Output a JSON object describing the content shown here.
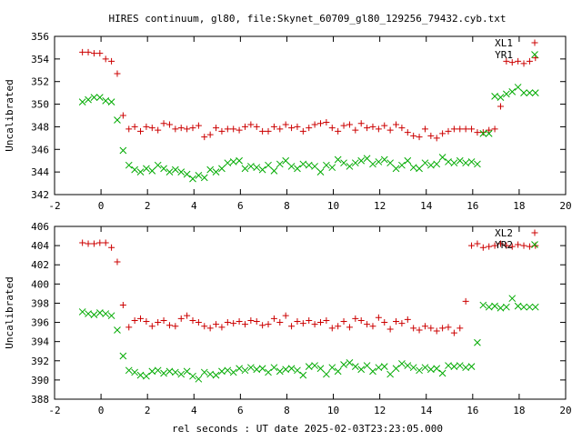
{
  "title": "HIRES continuum, gl80, file:Skynet_60709_gl80_129256_79432.cyb.txt",
  "xlabel": "rel seconds : UT date 2025-02-03T23:23:05.000",
  "colors": {
    "red": "#cc0000",
    "green": "#00aa00",
    "axis": "#000000"
  },
  "chart_data": [
    {
      "type": "scatter",
      "title": "",
      "xlabel": "",
      "ylabel": "Uncalibrated",
      "xlim": [
        -2,
        20
      ],
      "ylim": [
        342,
        356
      ],
      "xticks": [
        "-2",
        "0",
        "2",
        "4",
        "6",
        "8",
        "10",
        "12",
        "14",
        "16",
        "18",
        "20"
      ],
      "yticks": [
        "342",
        "344",
        "346",
        "348",
        "350",
        "352",
        "354",
        "356"
      ],
      "legend": "top-right",
      "series": [
        {
          "name": "XL1",
          "marker": "plus",
          "color": "#cc0000",
          "x": [
            -0.8,
            -0.55,
            -0.3,
            -0.05,
            0.2,
            0.45,
            0.7,
            0.95,
            1.2,
            1.45,
            1.7,
            1.95,
            2.2,
            2.45,
            2.7,
            2.95,
            3.2,
            3.45,
            3.7,
            3.95,
            4.2,
            4.45,
            4.7,
            4.95,
            5.2,
            5.45,
            5.7,
            5.95,
            6.2,
            6.45,
            6.7,
            6.95,
            7.2,
            7.45,
            7.7,
            7.95,
            8.2,
            8.45,
            8.7,
            8.95,
            9.2,
            9.45,
            9.7,
            9.95,
            10.2,
            10.45,
            10.7,
            10.95,
            11.2,
            11.45,
            11.7,
            11.95,
            12.2,
            12.45,
            12.7,
            12.95,
            13.2,
            13.45,
            13.7,
            13.95,
            14.2,
            14.45,
            14.7,
            14.95,
            15.2,
            15.45,
            15.7,
            15.95,
            16.2,
            16.45,
            16.7,
            16.95,
            17.2,
            17.45,
            17.7,
            17.95,
            18.2,
            18.45,
            18.7
          ],
          "y": [
            354.6,
            354.6,
            354.5,
            354.5,
            354.0,
            353.8,
            352.7,
            349.0,
            347.8,
            348.0,
            347.6,
            348.0,
            347.9,
            347.7,
            348.3,
            348.2,
            347.8,
            347.9,
            347.8,
            347.9,
            348.1,
            347.1,
            347.3,
            347.9,
            347.6,
            347.8,
            347.8,
            347.7,
            348.0,
            348.2,
            348.0,
            347.6,
            347.6,
            348.0,
            347.8,
            348.2,
            347.9,
            348.0,
            347.6,
            347.9,
            348.2,
            348.3,
            348.4,
            347.9,
            347.6,
            348.1,
            348.2,
            347.7,
            348.3,
            347.9,
            348.0,
            347.8,
            348.1,
            347.7,
            348.2,
            347.9,
            347.5,
            347.2,
            347.1,
            347.8,
            347.2,
            347.0,
            347.4,
            347.6,
            347.8,
            347.8,
            347.8,
            347.8,
            347.5,
            347.5,
            347.7,
            347.8,
            349.8,
            353.8,
            353.7,
            353.8,
            353.6,
            353.8,
            354.1
          ]
        },
        {
          "name": "YR1",
          "marker": "cross",
          "color": "#00aa00",
          "x": [
            -0.8,
            -0.55,
            -0.3,
            -0.05,
            0.2,
            0.45,
            0.7,
            0.95,
            1.2,
            1.45,
            1.7,
            1.95,
            2.2,
            2.45,
            2.7,
            2.95,
            3.2,
            3.45,
            3.7,
            3.95,
            4.2,
            4.45,
            4.7,
            4.95,
            5.2,
            5.45,
            5.7,
            5.95,
            6.2,
            6.45,
            6.7,
            6.95,
            7.2,
            7.45,
            7.7,
            7.95,
            8.2,
            8.45,
            8.7,
            8.95,
            9.2,
            9.45,
            9.7,
            9.95,
            10.2,
            10.45,
            10.7,
            10.95,
            11.2,
            11.45,
            11.7,
            11.95,
            12.2,
            12.45,
            12.7,
            12.95,
            13.2,
            13.45,
            13.7,
            13.95,
            14.2,
            14.45,
            14.7,
            14.95,
            15.2,
            15.45,
            15.7,
            15.95,
            16.2,
            16.45,
            16.7,
            16.95,
            17.2,
            17.45,
            17.7,
            17.95,
            18.2,
            18.45,
            18.7
          ],
          "y": [
            350.2,
            350.4,
            350.6,
            350.6,
            350.3,
            350.2,
            348.6,
            345.9,
            344.6,
            344.2,
            344.0,
            344.3,
            344.1,
            344.6,
            344.3,
            344.0,
            344.2,
            344.0,
            343.8,
            343.4,
            343.7,
            343.5,
            344.2,
            344.0,
            344.3,
            344.8,
            344.9,
            345.0,
            344.3,
            344.5,
            344.4,
            344.2,
            344.6,
            344.1,
            344.7,
            345.0,
            344.5,
            344.3,
            344.7,
            344.6,
            344.5,
            344.0,
            344.6,
            344.4,
            345.1,
            344.8,
            344.5,
            344.8,
            345.0,
            345.2,
            344.7,
            344.9,
            345.1,
            344.8,
            344.3,
            344.6,
            345.0,
            344.4,
            344.3,
            344.8,
            344.6,
            344.7,
            345.3,
            344.9,
            344.8,
            345.0,
            344.8,
            344.9,
            344.7,
            347.4,
            347.4,
            350.7,
            350.6,
            350.9,
            351.1,
            351.5,
            351.0,
            351.0,
            351.0
          ]
        }
      ]
    },
    {
      "type": "scatter",
      "title": "",
      "xlabel": "rel seconds : UT date 2025-02-03T23:23:05.000",
      "ylabel": "Uncalibrated",
      "xlim": [
        -2,
        20
      ],
      "ylim": [
        388,
        406
      ],
      "xticks": [
        "-2",
        "0",
        "2",
        "4",
        "6",
        "8",
        "10",
        "12",
        "14",
        "16",
        "18",
        "20"
      ],
      "yticks": [
        "388",
        "390",
        "392",
        "394",
        "396",
        "398",
        "400",
        "402",
        "404",
        "406"
      ],
      "legend": "top-right",
      "series": [
        {
          "name": "XL2",
          "marker": "plus",
          "color": "#cc0000",
          "x": [
            -0.8,
            -0.55,
            -0.3,
            -0.05,
            0.2,
            0.45,
            0.7,
            0.95,
            1.2,
            1.45,
            1.7,
            1.95,
            2.2,
            2.45,
            2.7,
            2.95,
            3.2,
            3.45,
            3.7,
            3.95,
            4.2,
            4.45,
            4.7,
            4.95,
            5.2,
            5.45,
            5.7,
            5.95,
            6.2,
            6.45,
            6.7,
            6.95,
            7.2,
            7.45,
            7.7,
            7.95,
            8.2,
            8.45,
            8.7,
            8.95,
            9.2,
            9.45,
            9.7,
            9.95,
            10.2,
            10.45,
            10.7,
            10.95,
            11.2,
            11.45,
            11.7,
            11.95,
            12.2,
            12.45,
            12.7,
            12.95,
            13.2,
            13.45,
            13.7,
            13.95,
            14.2,
            14.45,
            14.7,
            14.95,
            15.2,
            15.45,
            15.7,
            15.95,
            16.2,
            16.45,
            16.7,
            16.95,
            17.2,
            17.45,
            17.7,
            17.95,
            18.2,
            18.45,
            18.7
          ],
          "y": [
            404.3,
            404.2,
            404.2,
            404.3,
            404.3,
            403.8,
            402.3,
            397.8,
            395.5,
            396.2,
            396.4,
            396.1,
            395.6,
            396.0,
            396.2,
            395.7,
            395.6,
            396.4,
            396.7,
            396.2,
            396.0,
            395.6,
            395.4,
            395.8,
            395.5,
            396.0,
            395.9,
            396.1,
            395.8,
            396.2,
            396.1,
            395.7,
            395.8,
            396.4,
            396.0,
            396.7,
            395.6,
            396.1,
            395.9,
            396.2,
            395.8,
            396.0,
            396.2,
            395.4,
            395.6,
            396.1,
            395.5,
            396.4,
            396.2,
            395.8,
            395.6,
            396.5,
            396.0,
            395.3,
            396.1,
            395.9,
            396.3,
            395.4,
            395.2,
            395.6,
            395.4,
            395.1,
            395.4,
            395.5,
            394.9,
            395.4,
            398.2,
            404.0,
            404.2,
            403.8,
            403.9,
            404.0,
            404.2,
            404.0,
            403.9,
            404.1,
            404.0,
            403.9,
            404.0
          ]
        },
        {
          "name": "YR2",
          "marker": "cross",
          "color": "#00aa00",
          "x": [
            -0.8,
            -0.55,
            -0.3,
            -0.05,
            0.2,
            0.45,
            0.7,
            0.95,
            1.2,
            1.45,
            1.7,
            1.95,
            2.2,
            2.45,
            2.7,
            2.95,
            3.2,
            3.45,
            3.7,
            3.95,
            4.2,
            4.45,
            4.7,
            4.95,
            5.2,
            5.45,
            5.7,
            5.95,
            6.2,
            6.45,
            6.7,
            6.95,
            7.2,
            7.45,
            7.7,
            7.95,
            8.2,
            8.45,
            8.7,
            8.95,
            9.2,
            9.45,
            9.7,
            9.95,
            10.2,
            10.45,
            10.7,
            10.95,
            11.2,
            11.45,
            11.7,
            11.95,
            12.2,
            12.45,
            12.7,
            12.95,
            13.2,
            13.45,
            13.7,
            13.95,
            14.2,
            14.45,
            14.7,
            14.95,
            15.2,
            15.45,
            15.7,
            15.95,
            16.2,
            16.45,
            16.7,
            16.95,
            17.2,
            17.45,
            17.7,
            17.95,
            18.2,
            18.45,
            18.7
          ],
          "y": [
            397.1,
            396.9,
            396.8,
            397.0,
            396.9,
            396.7,
            395.2,
            392.5,
            391.0,
            390.8,
            390.5,
            390.4,
            390.9,
            391.0,
            390.7,
            390.9,
            390.8,
            390.6,
            390.9,
            390.4,
            390.1,
            390.8,
            390.6,
            390.5,
            390.9,
            391.0,
            390.8,
            391.2,
            391.0,
            391.3,
            391.1,
            391.2,
            390.8,
            391.3,
            390.9,
            391.1,
            391.2,
            391.0,
            390.5,
            391.4,
            391.5,
            391.2,
            390.6,
            391.3,
            390.9,
            391.6,
            391.8,
            391.4,
            391.1,
            391.5,
            390.9,
            391.3,
            391.4,
            390.6,
            391.2,
            391.7,
            391.5,
            391.3,
            391.0,
            391.3,
            391.1,
            391.2,
            390.7,
            391.5,
            391.4,
            391.5,
            391.3,
            391.4,
            393.9,
            397.8,
            397.6,
            397.7,
            397.5,
            397.6,
            398.5,
            397.7,
            397.6,
            397.6,
            397.6
          ]
        }
      ]
    }
  ]
}
